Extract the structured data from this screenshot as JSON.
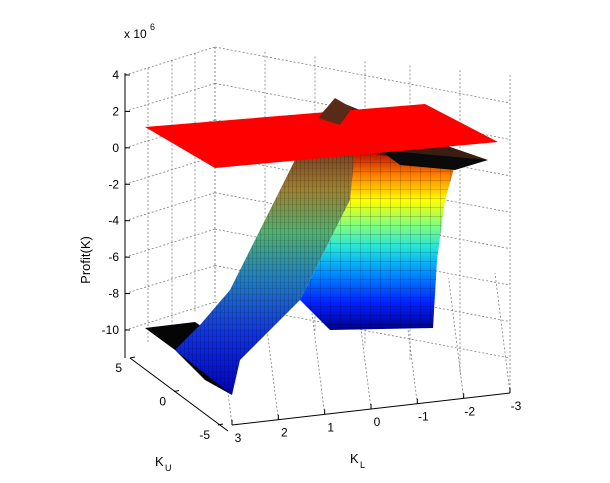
{
  "chart_data": {
    "type": "surface3d",
    "title": "",
    "zlabel": "Profit(K)",
    "xlabel_main": "K",
    "xlabel_sub": "L",
    "ylabel_main": "K",
    "ylabel_sub": "U",
    "exponent_base": "x 10",
    "exponent_power": "6",
    "z_ticks": [
      "4",
      "2",
      "0",
      "-2",
      "-4",
      "-6",
      "-8",
      "-10"
    ],
    "z_tick_values": [
      4,
      2,
      0,
      -2,
      -4,
      -6,
      -8,
      -10
    ],
    "kl_ticks": [
      "3",
      "2",
      "1",
      "0",
      "-1",
      "-2",
      "-3"
    ],
    "kl_tick_values": [
      3,
      2,
      1,
      0,
      -1,
      -2,
      -3
    ],
    "ku_ticks": [
      "5",
      "0",
      "-5"
    ],
    "ku_tick_values": [
      5,
      0,
      -5
    ],
    "zlim": [
      -10,
      4
    ],
    "kl_range": [
      -3,
      3
    ],
    "ku_range": [
      -5,
      5
    ],
    "plane_z": 1.2,
    "surface_low_z": -10,
    "surface_high_z": 0,
    "grid": true,
    "colormap": "jet",
    "plane_color": "#ff0000"
  }
}
